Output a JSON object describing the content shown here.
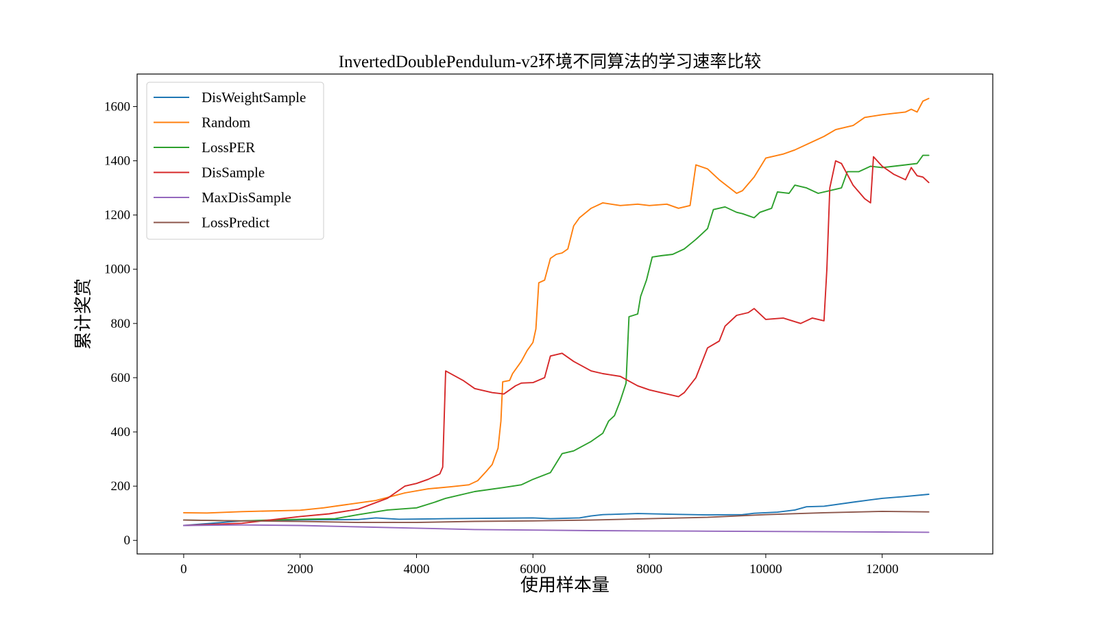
{
  "chart_data": {
    "type": "line",
    "title": "InvertedDoublePendulum-v2环境不同算法的学习速率比较",
    "xlabel": "使用样本量",
    "ylabel": "累计奖赏",
    "xlim": [
      -800,
      13900
    ],
    "ylim": [
      -50,
      1720
    ],
    "xticks": [
      0,
      2000,
      4000,
      6000,
      8000,
      10000,
      12000
    ],
    "yticks": [
      0,
      200,
      400,
      600,
      800,
      1000,
      1200,
      1400,
      1600
    ],
    "grid": false,
    "legend": {
      "position": "top-left"
    },
    "series": [
      {
        "name": "DisWeightSample",
        "color": "#1f77b4",
        "points": [
          [
            0,
            55
          ],
          [
            1000,
            72
          ],
          [
            2000,
            76
          ],
          [
            3000,
            77
          ],
          [
            3300,
            83
          ],
          [
            3700,
            78
          ],
          [
            4500,
            80
          ],
          [
            5500,
            82
          ],
          [
            6000,
            83
          ],
          [
            6300,
            80
          ],
          [
            6800,
            83
          ],
          [
            7000,
            90
          ],
          [
            7200,
            95
          ],
          [
            7800,
            99
          ],
          [
            8500,
            96
          ],
          [
            9000,
            94
          ],
          [
            9600,
            95
          ],
          [
            9800,
            100
          ],
          [
            10200,
            104
          ],
          [
            10500,
            112
          ],
          [
            10700,
            124
          ],
          [
            11000,
            126
          ],
          [
            11500,
            141
          ],
          [
            12000,
            155
          ],
          [
            12400,
            162
          ],
          [
            12800,
            170
          ]
        ]
      },
      {
        "name": "Random",
        "color": "#ff7f0e",
        "points": [
          [
            0,
            102
          ],
          [
            400,
            101
          ],
          [
            1000,
            106
          ],
          [
            2000,
            111
          ],
          [
            2400,
            120
          ],
          [
            2800,
            132
          ],
          [
            3300,
            147
          ],
          [
            3800,
            175
          ],
          [
            4200,
            190
          ],
          [
            4600,
            198
          ],
          [
            4900,
            205
          ],
          [
            5050,
            220
          ],
          [
            5200,
            255
          ],
          [
            5300,
            280
          ],
          [
            5400,
            340
          ],
          [
            5450,
            440
          ],
          [
            5480,
            585
          ],
          [
            5600,
            590
          ],
          [
            5650,
            615
          ],
          [
            5800,
            660
          ],
          [
            5900,
            700
          ],
          [
            6000,
            730
          ],
          [
            6050,
            780
          ],
          [
            6100,
            950
          ],
          [
            6200,
            960
          ],
          [
            6300,
            1040
          ],
          [
            6400,
            1055
          ],
          [
            6500,
            1060
          ],
          [
            6600,
            1075
          ],
          [
            6700,
            1160
          ],
          [
            6800,
            1190
          ],
          [
            7000,
            1225
          ],
          [
            7200,
            1245
          ],
          [
            7500,
            1235
          ],
          [
            7800,
            1240
          ],
          [
            8000,
            1235
          ],
          [
            8300,
            1240
          ],
          [
            8500,
            1225
          ],
          [
            8700,
            1235
          ],
          [
            8800,
            1385
          ],
          [
            9000,
            1370
          ],
          [
            9200,
            1330
          ],
          [
            9500,
            1280
          ],
          [
            9600,
            1290
          ],
          [
            9800,
            1340
          ],
          [
            10000,
            1410
          ],
          [
            10300,
            1425
          ],
          [
            10500,
            1440
          ],
          [
            10800,
            1470
          ],
          [
            11000,
            1490
          ],
          [
            11200,
            1515
          ],
          [
            11500,
            1530
          ],
          [
            11700,
            1560
          ],
          [
            12000,
            1570
          ],
          [
            12200,
            1575
          ],
          [
            12400,
            1580
          ],
          [
            12500,
            1590
          ],
          [
            12600,
            1580
          ],
          [
            12700,
            1620
          ],
          [
            12800,
            1630
          ]
        ]
      },
      {
        "name": "LossPER",
        "color": "#2ca02c",
        "points": [
          [
            0,
            75
          ],
          [
            1000,
            72
          ],
          [
            2000,
            78
          ],
          [
            2600,
            80
          ],
          [
            3000,
            95
          ],
          [
            3500,
            112
          ],
          [
            4000,
            120
          ],
          [
            4300,
            140
          ],
          [
            4500,
            155
          ],
          [
            5000,
            180
          ],
          [
            5500,
            195
          ],
          [
            5800,
            205
          ],
          [
            6000,
            225
          ],
          [
            6300,
            250
          ],
          [
            6500,
            320
          ],
          [
            6700,
            330
          ],
          [
            7000,
            365
          ],
          [
            7200,
            395
          ],
          [
            7300,
            440
          ],
          [
            7400,
            460
          ],
          [
            7500,
            515
          ],
          [
            7600,
            580
          ],
          [
            7650,
            825
          ],
          [
            7800,
            835
          ],
          [
            7850,
            900
          ],
          [
            7950,
            960
          ],
          [
            8050,
            1045
          ],
          [
            8200,
            1050
          ],
          [
            8400,
            1055
          ],
          [
            8600,
            1075
          ],
          [
            8800,
            1110
          ],
          [
            9000,
            1150
          ],
          [
            9100,
            1220
          ],
          [
            9300,
            1230
          ],
          [
            9500,
            1210
          ],
          [
            9600,
            1205
          ],
          [
            9800,
            1190
          ],
          [
            9900,
            1210
          ],
          [
            10100,
            1225
          ],
          [
            10200,
            1285
          ],
          [
            10400,
            1280
          ],
          [
            10500,
            1310
          ],
          [
            10700,
            1300
          ],
          [
            10900,
            1280
          ],
          [
            11100,
            1290
          ],
          [
            11300,
            1300
          ],
          [
            11400,
            1360
          ],
          [
            11600,
            1360
          ],
          [
            11800,
            1380
          ],
          [
            12000,
            1375
          ],
          [
            12200,
            1380
          ],
          [
            12400,
            1385
          ],
          [
            12600,
            1390
          ],
          [
            12700,
            1420
          ],
          [
            12800,
            1420
          ]
        ]
      },
      {
        "name": "DisSample",
        "color": "#d62728",
        "points": [
          [
            0,
            55
          ],
          [
            1000,
            63
          ],
          [
            2000,
            88
          ],
          [
            2500,
            98
          ],
          [
            3000,
            115
          ],
          [
            3500,
            155
          ],
          [
            3800,
            200
          ],
          [
            4000,
            210
          ],
          [
            4200,
            225
          ],
          [
            4400,
            245
          ],
          [
            4450,
            270
          ],
          [
            4500,
            625
          ],
          [
            4800,
            590
          ],
          [
            5000,
            560
          ],
          [
            5300,
            545
          ],
          [
            5500,
            540
          ],
          [
            5700,
            570
          ],
          [
            5800,
            580
          ],
          [
            6000,
            582
          ],
          [
            6200,
            600
          ],
          [
            6300,
            680
          ],
          [
            6500,
            690
          ],
          [
            6700,
            660
          ],
          [
            7000,
            625
          ],
          [
            7200,
            615
          ],
          [
            7500,
            605
          ],
          [
            7800,
            570
          ],
          [
            8000,
            555
          ],
          [
            8200,
            545
          ],
          [
            8500,
            530
          ],
          [
            8600,
            545
          ],
          [
            8800,
            600
          ],
          [
            9000,
            710
          ],
          [
            9200,
            735
          ],
          [
            9300,
            790
          ],
          [
            9500,
            830
          ],
          [
            9700,
            840
          ],
          [
            9800,
            855
          ],
          [
            10000,
            815
          ],
          [
            10300,
            820
          ],
          [
            10600,
            800
          ],
          [
            10800,
            820
          ],
          [
            11000,
            810
          ],
          [
            11050,
            1000
          ],
          [
            11100,
            1300
          ],
          [
            11200,
            1400
          ],
          [
            11300,
            1390
          ],
          [
            11500,
            1310
          ],
          [
            11700,
            1260
          ],
          [
            11800,
            1245
          ],
          [
            11850,
            1415
          ],
          [
            12000,
            1380
          ],
          [
            12200,
            1350
          ],
          [
            12400,
            1330
          ],
          [
            12500,
            1375
          ],
          [
            12600,
            1345
          ],
          [
            12700,
            1340
          ],
          [
            12800,
            1320
          ]
        ]
      },
      {
        "name": "MaxDisSample",
        "color": "#9467bd",
        "points": [
          [
            0,
            55
          ],
          [
            1000,
            57
          ],
          [
            2000,
            55
          ],
          [
            3000,
            50
          ],
          [
            4000,
            45
          ],
          [
            5000,
            40
          ],
          [
            6000,
            38
          ],
          [
            7000,
            36
          ],
          [
            8000,
            35
          ],
          [
            9000,
            34
          ],
          [
            10000,
            33
          ],
          [
            11000,
            32
          ],
          [
            12000,
            31
          ],
          [
            12800,
            30
          ]
        ]
      },
      {
        "name": "LossPredict",
        "color": "#8c564b",
        "points": [
          [
            0,
            75
          ],
          [
            1000,
            72
          ],
          [
            2000,
            70
          ],
          [
            3000,
            66
          ],
          [
            4000,
            66
          ],
          [
            5000,
            70
          ],
          [
            6000,
            72
          ],
          [
            7000,
            75
          ],
          [
            8000,
            80
          ],
          [
            9000,
            85
          ],
          [
            10000,
            95
          ],
          [
            11000,
            102
          ],
          [
            12000,
            107
          ],
          [
            12800,
            105
          ]
        ]
      }
    ]
  }
}
